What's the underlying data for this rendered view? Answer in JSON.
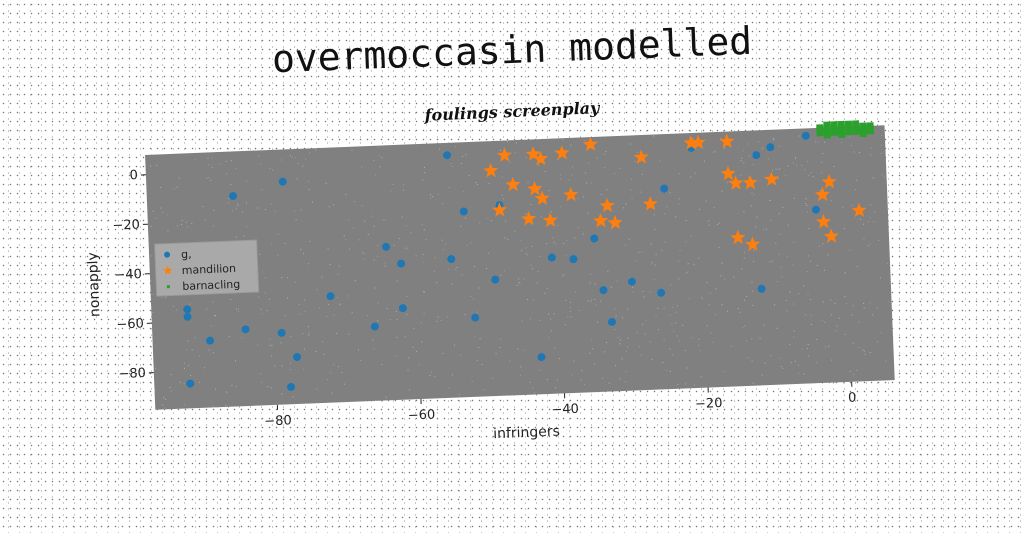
{
  "title": "overmoccasin modelled",
  "chart_data": {
    "type": "scatter",
    "title": "foulings screenplay",
    "xlabel": "infringers",
    "ylabel": "nonapply",
    "xlim": [
      -97,
      6
    ],
    "ylim": [
      -95,
      8
    ],
    "x_ticks": [
      -80,
      -60,
      -40,
      -20,
      0
    ],
    "y_ticks": [
      0,
      -20,
      -40,
      -60,
      -80
    ],
    "legend_position": "center-left",
    "plot_background": "#808080",
    "series": [
      {
        "name": "g,",
        "marker": "circle",
        "color": "#1f77b4",
        "points": [
          [
            -85,
            -10
          ],
          [
            -78,
            -5
          ],
          [
            -92,
            -55
          ],
          [
            -92,
            -58
          ],
          [
            -89,
            -68
          ],
          [
            -84,
            -64
          ],
          [
            -79,
            -66
          ],
          [
            -77,
            -76
          ],
          [
            -78,
            -88
          ],
          [
            -92,
            -85
          ],
          [
            -64,
            -33
          ],
          [
            -62,
            -40
          ],
          [
            -62,
            -58
          ],
          [
            -66,
            -65
          ],
          [
            -72,
            -52
          ],
          [
            -55,
            3
          ],
          [
            -53,
            -20
          ],
          [
            -55,
            -39
          ],
          [
            -48,
            -18
          ],
          [
            -49,
            -48
          ],
          [
            -52,
            -63
          ],
          [
            -43,
            -80
          ],
          [
            -41,
            -40
          ],
          [
            -38,
            -41
          ],
          [
            -35,
            -33
          ],
          [
            -34,
            -54
          ],
          [
            -30,
            -51
          ],
          [
            -26,
            -56
          ],
          [
            -25,
            -14
          ],
          [
            -33,
            -67
          ],
          [
            -21,
            2
          ],
          [
            -12,
            -2
          ],
          [
            -10,
            1
          ],
          [
            -5,
            5
          ],
          [
            -4,
            -25
          ],
          [
            -12,
            -56
          ]
        ]
      },
      {
        "name": "mandilion",
        "marker": "star",
        "color": "#ff7f0e",
        "points": [
          [
            -47,
            2
          ],
          [
            -43,
            2
          ],
          [
            -42,
            0
          ],
          [
            -49,
            -4
          ],
          [
            -46,
            -10
          ],
          [
            -43,
            -12
          ],
          [
            -42,
            -16
          ],
          [
            -38,
            -15
          ],
          [
            -48,
            -20
          ],
          [
            -44,
            -24
          ],
          [
            -41,
            -25
          ],
          [
            -34,
            -26
          ],
          [
            -33,
            -20
          ],
          [
            -32,
            -27
          ],
          [
            -27,
            -20
          ],
          [
            -35,
            5
          ],
          [
            -28,
            -1
          ],
          [
            -21,
            4
          ],
          [
            -20,
            4
          ],
          [
            -16,
            4
          ],
          [
            -16,
            -9
          ],
          [
            -15,
            -13
          ],
          [
            -13,
            -13
          ],
          [
            -10,
            -12
          ],
          [
            -15,
            -35
          ],
          [
            -13,
            -38
          ],
          [
            -3,
            -19
          ],
          [
            -2,
            -14
          ],
          [
            -3,
            -30
          ],
          [
            -2,
            -36
          ],
          [
            2,
            -26
          ],
          [
            -39,
            2
          ]
        ]
      },
      {
        "name": "barnacling",
        "marker": "square",
        "color": "#2ca02c",
        "points": [
          [
            -3,
            6
          ],
          [
            -2,
            7
          ],
          [
            -1,
            8
          ],
          [
            0,
            7
          ],
          [
            1,
            8
          ],
          [
            2,
            6
          ],
          [
            3,
            7
          ],
          [
            4,
            8
          ],
          [
            -3,
            8
          ],
          [
            -1,
            6
          ],
          [
            0,
            5
          ],
          [
            1,
            9
          ],
          [
            2,
            8
          ],
          [
            3,
            5
          ],
          [
            4,
            6
          ],
          [
            -2,
            5
          ],
          [
            0,
            9
          ],
          [
            1,
            6
          ],
          [
            2,
            9
          ],
          [
            3,
            8
          ],
          [
            -1,
            9
          ],
          [
            4,
            7
          ],
          [
            -3,
            7
          ],
          [
            -2,
            9
          ]
        ]
      }
    ]
  }
}
